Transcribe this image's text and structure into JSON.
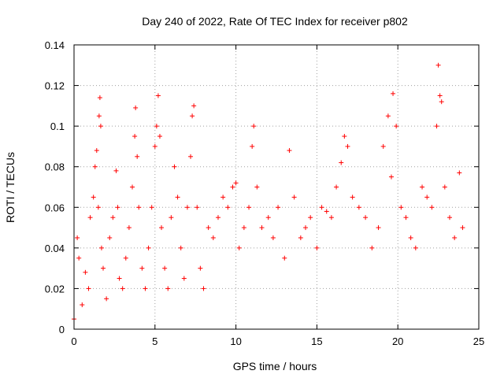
{
  "chart_data": {
    "type": "scatter",
    "title": "Day 240 of 2022, Rate Of TEC Index for receiver p802",
    "xlabel": "GPS time / hours",
    "ylabel": "ROTI / TECUs",
    "xlim": [
      0,
      25
    ],
    "ylim": [
      0,
      0.14
    ],
    "x_ticks": [
      0,
      5,
      10,
      15,
      20,
      25
    ],
    "x_tick_labels": [
      "0",
      "5",
      "10",
      "15",
      "20",
      "25"
    ],
    "y_ticks": [
      0,
      0.02,
      0.04,
      0.06,
      0.08,
      0.1,
      0.12,
      0.14
    ],
    "y_tick_labels": [
      "0",
      "0.02",
      "0.04",
      "0.06",
      "0.08",
      "0.1",
      "0.12",
      "0.14"
    ],
    "grid": true,
    "marker": "+",
    "color": "#ff0000",
    "series": [
      {
        "x": [
          0.0,
          0.2,
          0.3,
          0.5,
          0.7,
          0.9,
          1.0,
          1.2,
          1.3,
          1.4,
          1.5,
          1.55,
          1.6,
          1.65,
          1.7,
          1.8,
          2.0,
          2.2,
          2.4,
          2.6,
          2.7,
          2.8,
          3.0,
          3.2,
          3.4,
          3.6,
          3.75,
          3.8,
          3.9,
          4.0,
          4.2,
          4.4,
          4.6,
          4.8,
          5.0,
          5.1,
          5.2,
          5.3,
          5.4,
          5.6,
          5.8,
          6.0,
          6.2,
          6.4,
          6.6,
          6.8,
          7.0,
          7.2,
          7.3,
          7.4,
          7.6,
          7.8,
          8.0,
          8.3,
          8.6,
          8.9,
          9.2,
          9.5,
          9.8,
          10.0,
          10.2,
          10.5,
          10.8,
          11.0,
          11.1,
          11.3,
          11.6,
          12.0,
          12.3,
          12.6,
          13.0,
          13.3,
          13.6,
          14.0,
          14.3,
          14.6,
          15.0,
          15.3,
          15.6,
          15.9,
          16.2,
          16.5,
          16.7,
          16.9,
          17.2,
          17.6,
          18.0,
          18.4,
          18.8,
          19.1,
          19.4,
          19.6,
          19.7,
          19.9,
          20.2,
          20.5,
          20.8,
          21.1,
          21.5,
          21.8,
          22.1,
          22.4,
          22.5,
          22.6,
          22.7,
          22.9,
          23.2,
          23.5,
          23.8,
          24.0
        ],
        "y": [
          0.005,
          0.045,
          0.035,
          0.012,
          0.028,
          0.02,
          0.055,
          0.065,
          0.08,
          0.088,
          0.06,
          0.105,
          0.114,
          0.1,
          0.04,
          0.03,
          0.015,
          0.045,
          0.055,
          0.078,
          0.06,
          0.025,
          0.02,
          0.035,
          0.05,
          0.07,
          0.095,
          0.109,
          0.085,
          0.06,
          0.03,
          0.02,
          0.04,
          0.06,
          0.09,
          0.1,
          0.115,
          0.095,
          0.05,
          0.03,
          0.02,
          0.055,
          0.08,
          0.065,
          0.04,
          0.025,
          0.06,
          0.085,
          0.105,
          0.11,
          0.06,
          0.03,
          0.02,
          0.05,
          0.045,
          0.055,
          0.065,
          0.06,
          0.07,
          0.072,
          0.04,
          0.05,
          0.06,
          0.09,
          0.1,
          0.07,
          0.05,
          0.055,
          0.045,
          0.06,
          0.035,
          0.088,
          0.065,
          0.045,
          0.05,
          0.055,
          0.04,
          0.06,
          0.058,
          0.055,
          0.07,
          0.082,
          0.095,
          0.09,
          0.065,
          0.06,
          0.055,
          0.04,
          0.05,
          0.09,
          0.105,
          0.075,
          0.116,
          0.1,
          0.06,
          0.055,
          0.045,
          0.04,
          0.07,
          0.065,
          0.06,
          0.1,
          0.13,
          0.115,
          0.112,
          0.07,
          0.055,
          0.045,
          0.077,
          0.05
        ]
      }
    ]
  }
}
